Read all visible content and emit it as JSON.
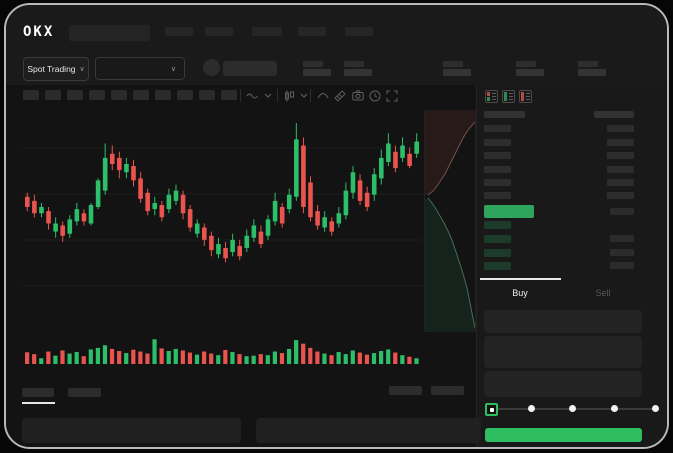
{
  "brand": {
    "logo_text": "OKX"
  },
  "header": {
    "market_type_label": "Spot Trading",
    "chevron": "∨",
    "nav_placeholder_count": 5,
    "stat_group_count": 5
  },
  "toolbar": {
    "timeframe_button_count": 10,
    "icons": [
      "wave-line-icon",
      "chevron-down-icon",
      "candlestick-type-icon",
      "chevron-down-icon",
      "curve-overlay-icon",
      "draw-hatch-icon",
      "camera-icon",
      "clock-icon",
      "fullscreen-icon"
    ]
  },
  "orderbook": {
    "mode_icons": [
      "combined-book-icon",
      "bids-only-icon",
      "asks-only-icon"
    ],
    "ask_row_count": 6,
    "bid_row_count": 4
  },
  "trade_panel": {
    "buy_tab_label": "Buy",
    "sell_tab_label": "Sell",
    "buy_button_label": "",
    "slider_stop_count": 5
  },
  "colors": {
    "up": "#2dbe69",
    "down": "#e9544f",
    "accent_green": "#2ebd60",
    "price_bar_green": "#2fa45d",
    "bid_bar": "#1d3b2a",
    "ask_area_fill": "#271b1a",
    "ask_area_line": "#74504c",
    "bid_area_fill": "#16231d",
    "bid_area_line": "#416e56",
    "grid_line": "rgba(255,255,255,0.045)"
  },
  "chart_data": {
    "type": "candlestick",
    "title": "",
    "xlabel": "time (tick labels hidden)",
    "ylabel": "price (normalized 0-100, labels hidden)",
    "ylim": [
      0,
      100
    ],
    "grid": "faint horizontal lines",
    "candles_format": "[open, high, low, close]",
    "candles": [
      [
        64,
        66,
        57,
        59
      ],
      [
        62,
        65,
        54,
        56
      ],
      [
        56,
        61,
        54,
        59
      ],
      [
        57,
        59,
        48,
        51
      ],
      [
        47,
        54,
        44,
        51
      ],
      [
        50,
        52,
        42,
        45
      ],
      [
        46,
        55,
        44,
        53
      ],
      [
        52,
        61,
        50,
        58
      ],
      [
        56,
        58,
        50,
        52
      ],
      [
        51,
        61,
        50,
        60
      ],
      [
        59,
        73,
        58,
        72
      ],
      [
        67,
        90,
        65,
        83
      ],
      [
        85,
        89,
        77,
        80
      ],
      [
        83,
        86,
        73,
        77
      ],
      [
        76,
        83,
        73,
        80
      ],
      [
        79,
        82,
        69,
        72
      ],
      [
        73,
        76,
        61,
        63
      ],
      [
        66,
        68,
        55,
        57
      ],
      [
        58,
        64,
        55,
        61
      ],
      [
        60,
        62,
        52,
        54
      ],
      [
        58,
        68,
        56,
        65
      ],
      [
        62,
        70,
        60,
        67
      ],
      [
        65,
        67,
        53,
        56
      ],
      [
        58,
        60,
        47,
        49
      ],
      [
        46,
        53,
        44,
        51
      ],
      [
        49,
        51,
        40,
        43
      ],
      [
        45,
        47,
        35,
        38
      ],
      [
        36,
        44,
        34,
        41
      ],
      [
        39,
        42,
        32,
        34
      ],
      [
        37,
        46,
        35,
        43
      ],
      [
        40,
        43,
        33,
        35
      ],
      [
        39,
        48,
        37,
        45
      ],
      [
        44,
        53,
        42,
        50
      ],
      [
        47,
        50,
        39,
        41
      ],
      [
        45,
        55,
        43,
        53
      ],
      [
        52,
        66,
        50,
        62
      ],
      [
        59,
        61,
        49,
        51
      ],
      [
        58,
        68,
        56,
        65
      ],
      [
        64,
        100,
        62,
        92
      ],
      [
        89,
        93,
        56,
        59
      ],
      [
        71,
        74,
        52,
        54
      ],
      [
        57,
        60,
        48,
        50
      ],
      [
        49,
        57,
        47,
        54
      ],
      [
        52,
        54,
        45,
        47
      ],
      [
        51,
        59,
        49,
        56
      ],
      [
        55,
        71,
        53,
        67
      ],
      [
        66,
        79,
        63,
        76
      ],
      [
        72,
        75,
        60,
        62
      ],
      [
        66,
        69,
        57,
        59
      ],
      [
        65,
        78,
        62,
        75
      ],
      [
        73,
        87,
        70,
        83
      ],
      [
        81,
        95,
        79,
        90
      ],
      [
        86,
        89,
        76,
        78
      ],
      [
        83,
        93,
        81,
        89
      ],
      [
        85,
        88,
        78,
        79
      ],
      [
        85,
        95,
        83,
        91
      ]
    ],
    "volume": [
      45,
      38,
      22,
      48,
      32,
      52,
      40,
      46,
      30,
      56,
      62,
      72,
      58,
      50,
      42,
      55,
      48,
      40,
      95,
      60,
      50,
      58,
      52,
      44,
      36,
      48,
      40,
      34,
      54,
      46,
      38,
      30,
      32,
      38,
      34,
      48,
      42,
      58,
      92,
      78,
      62,
      48,
      40,
      34,
      46,
      38,
      52,
      44,
      36,
      42,
      50,
      56,
      44,
      34,
      28,
      22
    ],
    "depth": {
      "note": "vertical market-depth, asks top / bids bottom, points in panel coords 50x222",
      "asks": [
        [
          50,
          12
        ],
        [
          43,
          20
        ],
        [
          38,
          28
        ],
        [
          33,
          38
        ],
        [
          28,
          48
        ],
        [
          24,
          56
        ],
        [
          20,
          64
        ],
        [
          16,
          70
        ],
        [
          12,
          76
        ],
        [
          8,
          81
        ],
        [
          3,
          85
        ]
      ],
      "bids": [
        [
          3,
          88
        ],
        [
          7,
          93
        ],
        [
          11,
          99
        ],
        [
          15,
          106
        ],
        [
          19,
          113
        ],
        [
          23,
          121
        ],
        [
          27,
          130
        ],
        [
          30,
          139
        ],
        [
          33,
          148
        ],
        [
          36,
          157
        ],
        [
          39,
          167
        ],
        [
          42,
          178
        ],
        [
          44,
          188
        ],
        [
          46,
          198
        ],
        [
          48,
          208
        ],
        [
          50,
          218
        ]
      ]
    }
  }
}
